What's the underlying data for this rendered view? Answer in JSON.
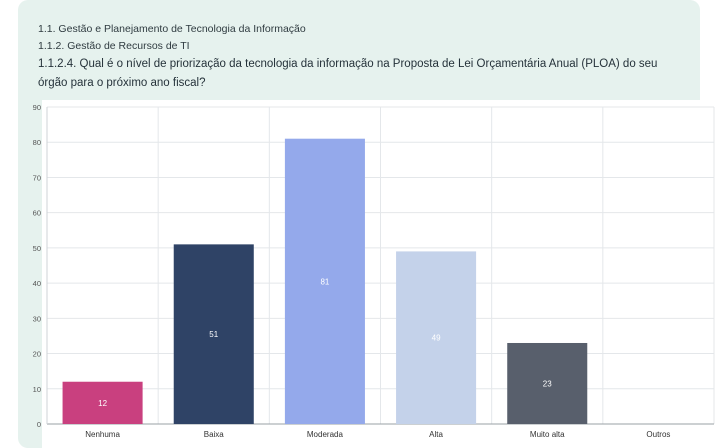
{
  "header": {
    "crumb1": "1.1. Gestão e Planejamento de Tecnologia da Informação",
    "crumb2": "1.1.2. Gestão de Recursos de TI",
    "question": "1.1.2.4. Qual é o nível de priorização da tecnologia da informação na Proposta de Lei Orçamentária Anual (PLOA) do seu órgão para o próximo ano fiscal?"
  },
  "chart_data": {
    "type": "bar",
    "categories": [
      "Nenhuma",
      "Baixa",
      "Moderada",
      "Alta",
      "Muito alta",
      "Outros"
    ],
    "values": [
      12,
      51,
      81,
      49,
      23,
      0
    ],
    "colors": [
      "#c9407f",
      "#2f4366",
      "#94a9eb",
      "#c4d2ea",
      "#585f6c",
      "#ffffff"
    ],
    "label_colors": [
      "#ffffff",
      "#ffffff",
      "#ffffff",
      "#ffffff",
      "#ffffff",
      "#ffffff"
    ],
    "ylim": [
      0,
      90
    ],
    "yticks": [
      0,
      10,
      20,
      30,
      40,
      50,
      60,
      70,
      80,
      90
    ],
    "grid": true,
    "title": "",
    "xlabel": "",
    "ylabel": ""
  }
}
